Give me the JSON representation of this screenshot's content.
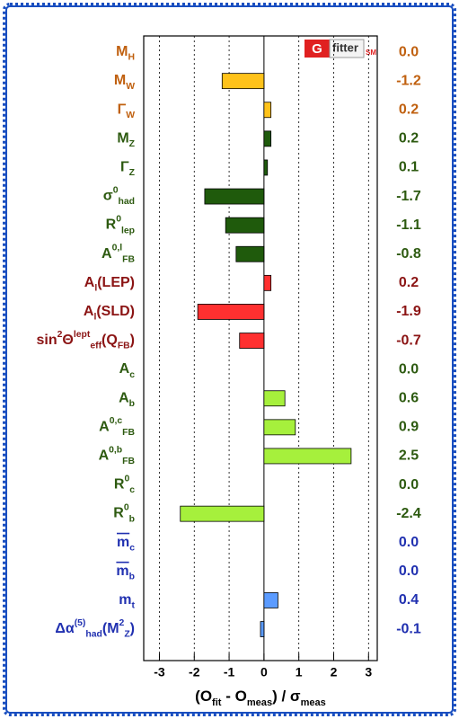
{
  "chart_data": {
    "type": "hbar",
    "logo": {
      "g": "G",
      "name": "fitter",
      "tag": "SM"
    },
    "categories": [
      {
        "parts": [
          {
            "text": "M"
          },
          {
            "text": "H",
            "pos": "sub"
          }
        ]
      },
      {
        "parts": [
          {
            "text": "M"
          },
          {
            "text": "W",
            "pos": "sub"
          }
        ]
      },
      {
        "parts": [
          {
            "text": "Γ"
          },
          {
            "text": "W",
            "pos": "sub"
          }
        ]
      },
      {
        "parts": [
          {
            "text": "M"
          },
          {
            "text": "Z",
            "pos": "sub"
          }
        ]
      },
      {
        "parts": [
          {
            "text": "Γ"
          },
          {
            "text": "Z",
            "pos": "sub"
          }
        ]
      },
      {
        "parts": [
          {
            "text": "σ"
          },
          {
            "text": "0",
            "pos": "sup"
          },
          {
            "text": "had",
            "pos": "sub"
          }
        ]
      },
      {
        "parts": [
          {
            "text": "R"
          },
          {
            "text": "0",
            "pos": "sup"
          },
          {
            "text": "lep",
            "pos": "sub"
          }
        ]
      },
      {
        "parts": [
          {
            "text": "A"
          },
          {
            "text": "0,l",
            "pos": "sup"
          },
          {
            "text": "FB",
            "pos": "sub"
          }
        ]
      },
      {
        "parts": [
          {
            "text": "A"
          },
          {
            "text": "l",
            "pos": "sub"
          },
          {
            "text": "(LEP)"
          }
        ]
      },
      {
        "parts": [
          {
            "text": "A"
          },
          {
            "text": "l",
            "pos": "sub"
          },
          {
            "text": "(SLD)"
          }
        ]
      },
      {
        "parts": [
          {
            "text": "sin"
          },
          {
            "text": "2",
            "pos": "sup"
          },
          {
            "text": "Θ"
          },
          {
            "text": "lept",
            "pos": "sup"
          },
          {
            "text": "eff",
            "pos": "sub"
          },
          {
            "text": "(Q"
          },
          {
            "text": "FB",
            "pos": "sub"
          },
          {
            "text": ")"
          }
        ]
      },
      {
        "parts": [
          {
            "text": "A"
          },
          {
            "text": "c",
            "pos": "sub"
          }
        ]
      },
      {
        "parts": [
          {
            "text": "A"
          },
          {
            "text": "b",
            "pos": "sub"
          }
        ]
      },
      {
        "parts": [
          {
            "text": "A"
          },
          {
            "text": "0,c",
            "pos": "sup"
          },
          {
            "text": "FB",
            "pos": "sub"
          }
        ]
      },
      {
        "parts": [
          {
            "text": "A"
          },
          {
            "text": "0,b",
            "pos": "sup"
          },
          {
            "text": "FB",
            "pos": "sub"
          }
        ]
      },
      {
        "parts": [
          {
            "text": "R"
          },
          {
            "text": "0",
            "pos": "sup"
          },
          {
            "text": "c",
            "pos": "sub"
          }
        ]
      },
      {
        "parts": [
          {
            "text": "R"
          },
          {
            "text": "0",
            "pos": "sup"
          },
          {
            "text": "b",
            "pos": "sub"
          }
        ]
      },
      {
        "parts": [
          {
            "text": "m",
            "overline": true
          },
          {
            "text": "c",
            "pos": "sub"
          }
        ]
      },
      {
        "parts": [
          {
            "text": "m",
            "overline": true
          },
          {
            "text": "b",
            "pos": "sub"
          }
        ]
      },
      {
        "parts": [
          {
            "text": "m"
          },
          {
            "text": "t",
            "pos": "sub"
          }
        ]
      },
      {
        "parts": [
          {
            "text": "Δα"
          },
          {
            "text": "(5)",
            "pos": "sup"
          },
          {
            "text": "had",
            "pos": "sub"
          },
          {
            "text": "(M"
          },
          {
            "text": "2",
            "pos": "sup"
          },
          {
            "text": "Z",
            "pos": "sub"
          },
          {
            "text": ")"
          }
        ]
      }
    ],
    "values": [
      0.0,
      -1.2,
      0.2,
      0.2,
      0.1,
      -1.7,
      -1.1,
      -0.8,
      0.2,
      -1.9,
      -0.7,
      0.0,
      0.6,
      0.9,
      2.5,
      0.0,
      -2.4,
      0.0,
      0.0,
      0.4,
      -0.1
    ],
    "value_labels": [
      "0.0",
      "-1.2",
      "0.2",
      "0.2",
      "0.1",
      "-1.7",
      "-1.1",
      "-0.8",
      "0.2",
      "-1.9",
      "-0.7",
      "0.0",
      "0.6",
      "0.9",
      "2.5",
      "0.0",
      "-2.4",
      "0.0",
      "0.0",
      "0.4",
      "-0.1"
    ],
    "bar_colors": [
      "#ffc21a",
      "#ffc21a",
      "#ffc21a",
      "#1f5a0c",
      "#1f5a0c",
      "#1f5a0c",
      "#1f5a0c",
      "#1f5a0c",
      "#ff3030",
      "#ff3030",
      "#ff3030",
      "#a6f03c",
      "#a6f03c",
      "#a6f03c",
      "#a6f03c",
      "#a6f03c",
      "#a6f03c",
      "#5b9bff",
      "#5b9bff",
      "#5b9bff",
      "#5b9bff"
    ],
    "label_colors": [
      "#c0600f",
      "#c0600f",
      "#c0600f",
      "#2d5a10",
      "#2d5a10",
      "#2d5a10",
      "#2d5a10",
      "#2d5a10",
      "#8b1414",
      "#8b1414",
      "#8b1414",
      "#2d5a10",
      "#2d5a10",
      "#2d5a10",
      "#2d5a10",
      "#2d5a10",
      "#2d5a10",
      "#2030b0",
      "#2030b0",
      "#2030b0",
      "#2030b0"
    ],
    "xlim": [
      -3.45,
      3.25
    ],
    "xticks": [
      -3,
      -2,
      -1,
      0,
      1,
      2,
      3
    ],
    "grid": true,
    "xlabel": {
      "parts": [
        {
          "text": "(O"
        },
        {
          "text": "fit",
          "pos": "sub"
        },
        {
          "text": " - O"
        },
        {
          "text": "meas",
          "pos": "sub"
        },
        {
          "text": ") / σ"
        },
        {
          "text": "meas",
          "pos": "sub"
        }
      ]
    }
  }
}
